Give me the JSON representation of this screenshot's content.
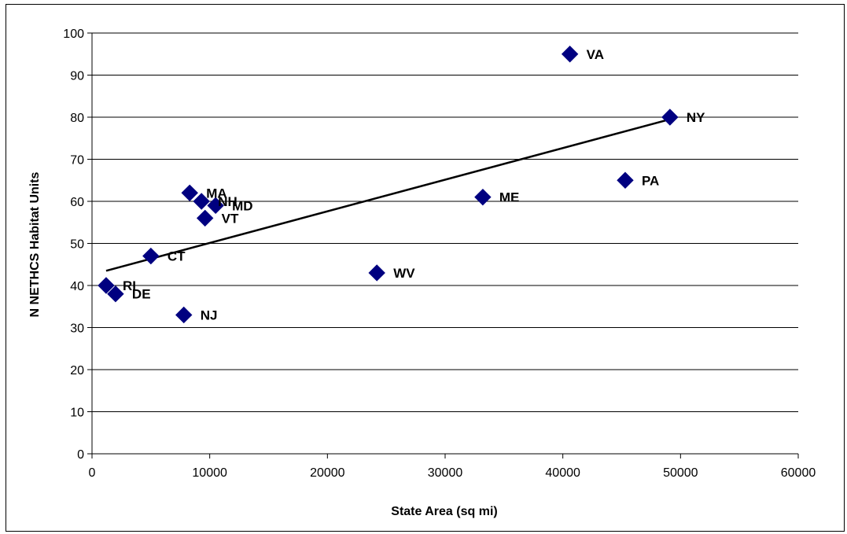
{
  "chart_data": {
    "type": "scatter",
    "xlabel": "State Area (sq mi)",
    "ylabel": "N NETHCS Habitat Units",
    "xlim": [
      0,
      60000
    ],
    "ylim": [
      0,
      100
    ],
    "xticks": [
      0,
      10000,
      20000,
      30000,
      40000,
      50000,
      60000
    ],
    "yticks": [
      0,
      10,
      20,
      30,
      40,
      50,
      60,
      70,
      80,
      90,
      100
    ],
    "grid": "horizontal",
    "legend": "none",
    "marker": "diamond",
    "series": [
      {
        "points": [
          {
            "label": "VA",
            "x": 40600,
            "y": 95
          },
          {
            "label": "NY",
            "x": 49100,
            "y": 80
          },
          {
            "label": "PA",
            "x": 45300,
            "y": 65
          },
          {
            "label": "ME",
            "x": 33200,
            "y": 61
          },
          {
            "label": "MA",
            "x": 8300,
            "y": 62
          },
          {
            "label": "NH",
            "x": 9300,
            "y": 60
          },
          {
            "label": "MD",
            "x": 10500,
            "y": 59
          },
          {
            "label": "VT",
            "x": 9600,
            "y": 56
          },
          {
            "label": "CT",
            "x": 5000,
            "y": 47
          },
          {
            "label": "WV",
            "x": 24200,
            "y": 43
          },
          {
            "label": "RI",
            "x": 1200,
            "y": 40
          },
          {
            "label": "DE",
            "x": 2000,
            "y": 38
          },
          {
            "label": "NJ",
            "x": 7800,
            "y": 33
          }
        ]
      }
    ],
    "trendline": {
      "type": "linear",
      "x": [
        1200,
        49100
      ],
      "y": [
        43.5,
        79.5
      ]
    },
    "colors": {
      "marker": "#000080",
      "trendline": "#000000",
      "grid": "#000000"
    }
  }
}
